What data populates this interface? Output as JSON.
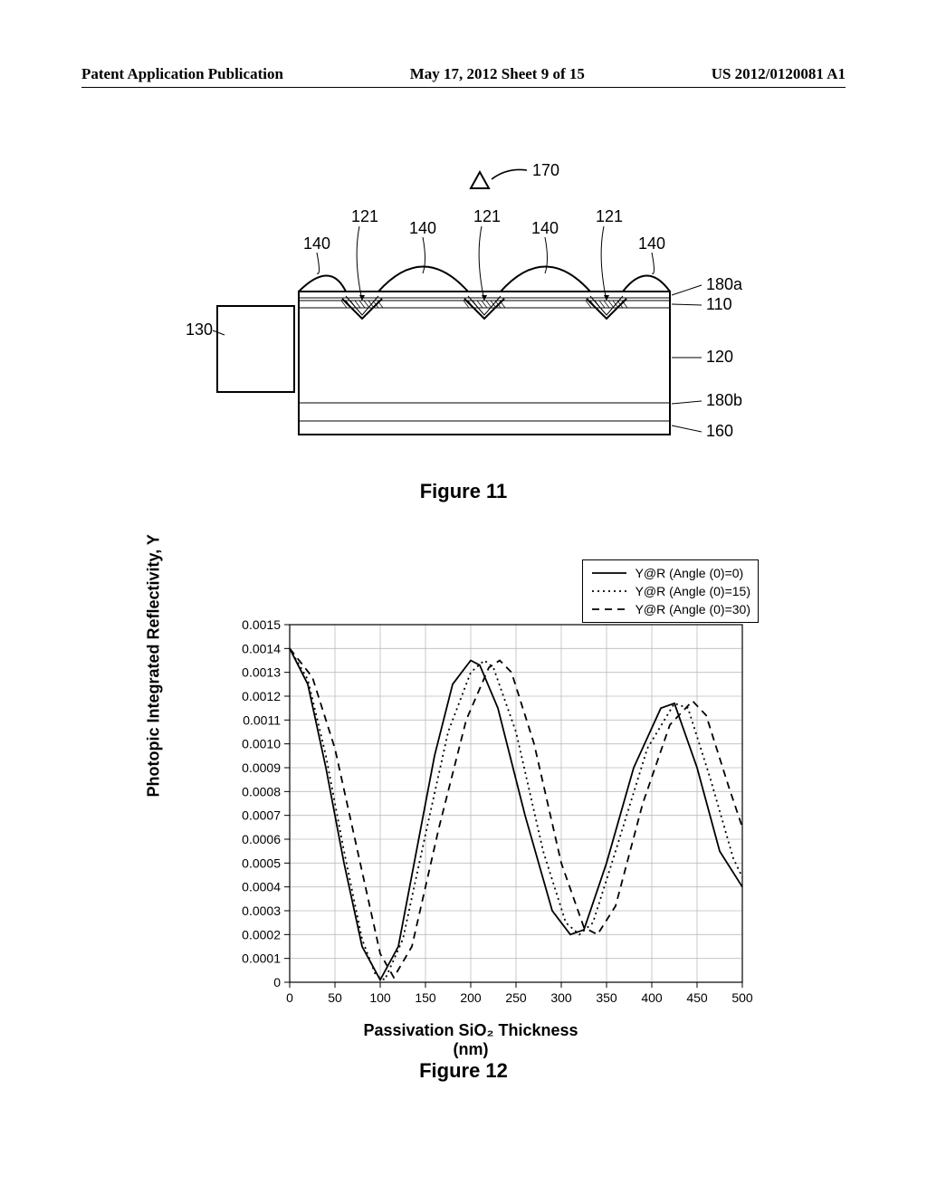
{
  "header": {
    "left": "Patent Application Publication",
    "middle": "May 17, 2012  Sheet 9 of 15",
    "right": "US 2012/0120081 A1"
  },
  "figure11": {
    "caption": "Figure 11",
    "labels": {
      "top_marker": "170",
      "top_row_121": "121",
      "top_row_140": "140",
      "left_box": "130",
      "right_180a": "180a",
      "right_110": "110",
      "right_120": "120",
      "right_180b": "180b",
      "right_160": "160"
    },
    "stroke_color": "#000000",
    "bg_color": "#ffffff"
  },
  "figure12": {
    "caption": "Figure 12",
    "type": "line",
    "xlabel": "Passivation SiO₂ Thickness",
    "xlabel_sub": "(nm)",
    "ylabel": "Photopic Integrated Reflectivity, Y",
    "xlim": [
      0,
      500
    ],
    "ylim": [
      0,
      0.0015
    ],
    "xticks": [
      0,
      50,
      100,
      150,
      200,
      250,
      300,
      350,
      400,
      450,
      500
    ],
    "yticks": [
      0,
      0.0001,
      0.0002,
      0.0003,
      0.0004,
      0.0005,
      0.0006,
      0.0007,
      0.0008,
      0.0009,
      0.001,
      0.0011,
      0.0012,
      0.0013,
      0.0014,
      0.0015
    ],
    "ytick_labels": [
      "0",
      "0.0001",
      "0.0002",
      "0.0003",
      "0.0004",
      "0.0005",
      "0.0006",
      "0.0007",
      "0.0008",
      "0.0009",
      "0.0010",
      "0.0011",
      "0.0012",
      "0.0013",
      "0.0014",
      "0.0015"
    ],
    "grid_color": "#bbbbbb",
    "axis_color": "#000000",
    "line_color": "#000000",
    "bg_color": "#ffffff",
    "line_width": 1.8,
    "legend": {
      "items": [
        {
          "label": "Y@R (Angle (0)=0)",
          "dash": "solid"
        },
        {
          "label": "Y@R (Angle (0)=15)",
          "dash": "dotted"
        },
        {
          "label": "Y@R (Angle (0)=30)",
          "dash": "dashed"
        }
      ],
      "position": "top-right"
    },
    "series": [
      {
        "name": "angle0",
        "dash": "solid",
        "points": [
          [
            0,
            0.0014
          ],
          [
            20,
            0.00125
          ],
          [
            40,
            0.0009
          ],
          [
            60,
            0.0005
          ],
          [
            80,
            0.00015
          ],
          [
            100,
            1e-05
          ],
          [
            120,
            0.00015
          ],
          [
            140,
            0.00055
          ],
          [
            160,
            0.00095
          ],
          [
            180,
            0.00125
          ],
          [
            200,
            0.00135
          ],
          [
            210,
            0.00133
          ],
          [
            230,
            0.00115
          ],
          [
            260,
            0.0007
          ],
          [
            290,
            0.0003
          ],
          [
            310,
            0.0002
          ],
          [
            325,
            0.00022
          ],
          [
            350,
            0.0005
          ],
          [
            380,
            0.0009
          ],
          [
            410,
            0.00115
          ],
          [
            425,
            0.00117
          ],
          [
            450,
            0.0009
          ],
          [
            475,
            0.00055
          ],
          [
            500,
            0.0004
          ]
        ]
      },
      {
        "name": "angle15",
        "dash": "dotted",
        "points": [
          [
            0,
            0.0014
          ],
          [
            20,
            0.00127
          ],
          [
            40,
            0.00095
          ],
          [
            60,
            0.00055
          ],
          [
            80,
            0.00018
          ],
          [
            95,
            3e-05
          ],
          [
            105,
            1e-05
          ],
          [
            125,
            0.00018
          ],
          [
            150,
            0.00062
          ],
          [
            175,
            0.00105
          ],
          [
            200,
            0.0013
          ],
          [
            215,
            0.00135
          ],
          [
            225,
            0.00132
          ],
          [
            250,
            0.00105
          ],
          [
            280,
            0.00055
          ],
          [
            305,
            0.00025
          ],
          [
            320,
            0.0002
          ],
          [
            335,
            0.00025
          ],
          [
            360,
            0.00055
          ],
          [
            395,
            0.00098
          ],
          [
            425,
            0.00117
          ],
          [
            440,
            0.00115
          ],
          [
            465,
            0.00085
          ],
          [
            490,
            0.00052
          ],
          [
            500,
            0.00044
          ]
        ]
      },
      {
        "name": "angle30",
        "dash": "dashed",
        "points": [
          [
            0,
            0.0014
          ],
          [
            25,
            0.00128
          ],
          [
            50,
            0.00098
          ],
          [
            75,
            0.00055
          ],
          [
            100,
            0.00012
          ],
          [
            115,
            2e-05
          ],
          [
            135,
            0.00015
          ],
          [
            165,
            0.00065
          ],
          [
            195,
            0.0011
          ],
          [
            220,
            0.00132
          ],
          [
            232,
            0.00135
          ],
          [
            245,
            0.0013
          ],
          [
            270,
            0.001
          ],
          [
            300,
            0.0005
          ],
          [
            325,
            0.00023
          ],
          [
            340,
            0.0002
          ],
          [
            360,
            0.00032
          ],
          [
            390,
            0.00075
          ],
          [
            420,
            0.00108
          ],
          [
            445,
            0.00118
          ],
          [
            460,
            0.00112
          ],
          [
            485,
            0.00082
          ],
          [
            500,
            0.00065
          ]
        ]
      }
    ]
  }
}
